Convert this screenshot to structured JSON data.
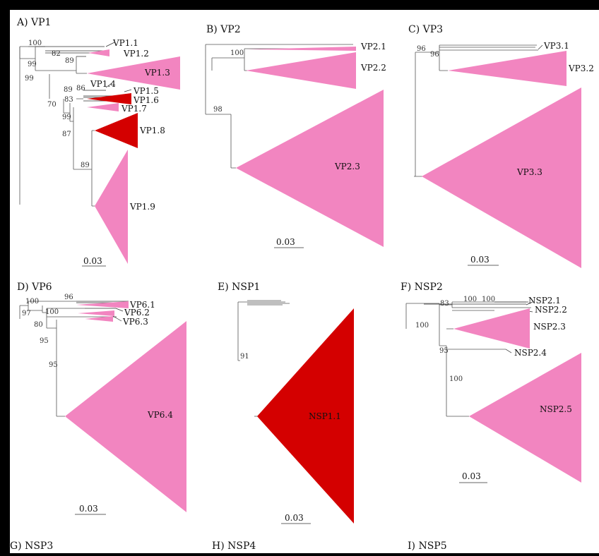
{
  "colors": {
    "pink": "#f285c0",
    "red": "#d40000",
    "background": "#ffffff",
    "frame": "#000000"
  },
  "panels": {
    "A": {
      "title": "A) VP1",
      "clades": [
        "VP1.1",
        "VP1.2",
        "VP1.3",
        "VP1.4",
        "VP1.5",
        "VP1.6",
        "VP1.7",
        "VP1.8",
        "VP1.9"
      ],
      "bootstrap": [
        "100",
        "82",
        "89",
        "99",
        "99",
        "89",
        "86",
        "83",
        "70",
        "99",
        "87",
        "89"
      ],
      "scale": "0.03"
    },
    "B": {
      "title": "B) VP2",
      "clades": [
        "VP2.1",
        "VP2.2",
        "VP2.3"
      ],
      "bootstrap": [
        "100",
        "98"
      ],
      "scale": "0.03"
    },
    "C": {
      "title": "C) VP3",
      "clades": [
        "VP3.1",
        "VP3.2",
        "VP3.3"
      ],
      "bootstrap": [
        "96",
        "96"
      ],
      "scale": "0.03"
    },
    "D": {
      "title": "D) VP6",
      "clades": [
        "VP6.1",
        "VP6.2",
        "VP6.3",
        "VP6.4"
      ],
      "bootstrap": [
        "100",
        "96",
        "97",
        "100",
        "80",
        "95",
        "95"
      ],
      "scale": "0.03"
    },
    "E": {
      "title": "E) NSP1",
      "clades": [
        "NSP1.1"
      ],
      "bootstrap": [
        "91"
      ],
      "scale": "0.03"
    },
    "F": {
      "title": "F) NSP2",
      "clades": [
        "NSP2.1",
        "NSP2.2",
        "NSP2.3",
        "NSP2.4",
        "NSP2.5"
      ],
      "bootstrap": [
        "83",
        "100",
        "100",
        "100",
        "95",
        "100"
      ],
      "scale": "0.03"
    },
    "G": {
      "title": "G) NSP3"
    },
    "H": {
      "title": "H) NSP4"
    },
    "I": {
      "title": "I) NSP5"
    }
  }
}
